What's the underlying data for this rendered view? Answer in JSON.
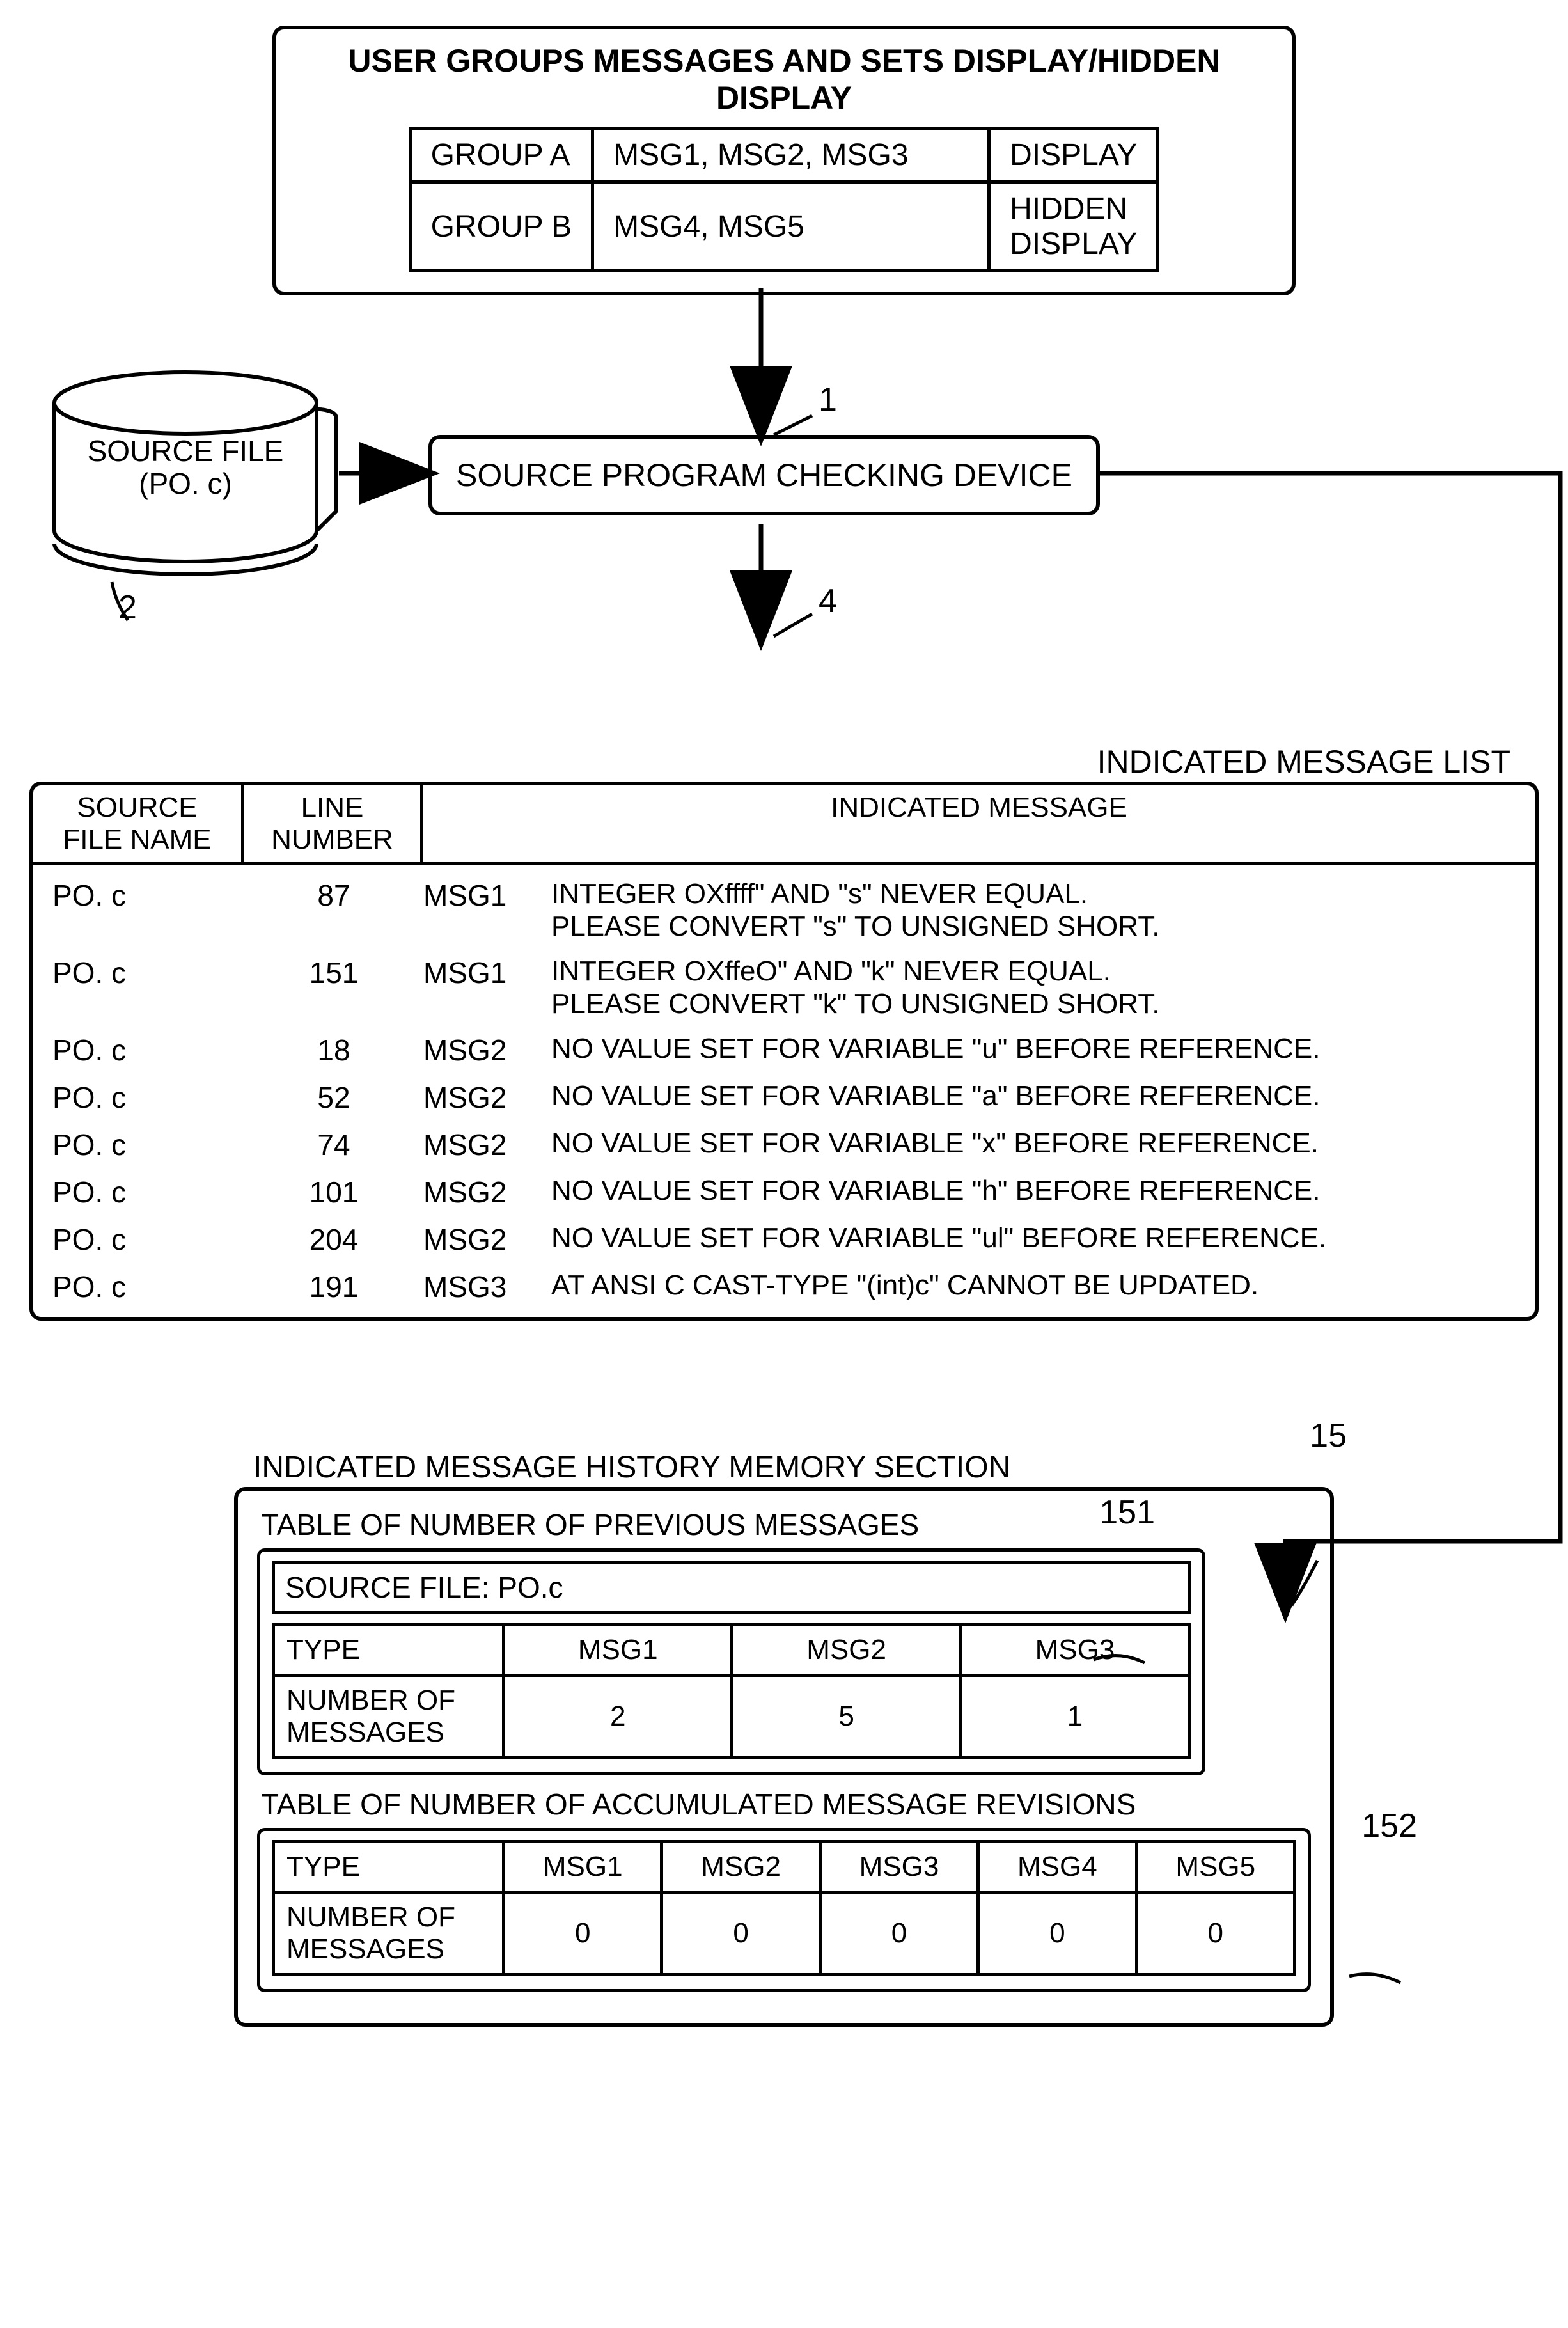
{
  "top": {
    "title": "USER GROUPS MESSAGES AND SETS DISPLAY/HIDDEN DISPLAY",
    "rows": [
      {
        "group": "GROUP A",
        "msgs": "MSG1, MSG2, MSG3",
        "mode": "DISPLAY"
      },
      {
        "group": "GROUP B",
        "msgs": "MSG4, MSG5",
        "mode": "HIDDEN\nDISPLAY"
      }
    ]
  },
  "source_file": {
    "line1": "SOURCE FILE",
    "line2": "(PO. c)"
  },
  "device": {
    "label": "SOURCE PROGRAM CHECKING DEVICE"
  },
  "refs": {
    "r1": "1",
    "r2": "2",
    "r4": "4",
    "r15": "15",
    "r151": "151",
    "r152": "152"
  },
  "msg_list": {
    "label": "INDICATED MESSAGE LIST",
    "headers": {
      "h1": "SOURCE\nFILE NAME",
      "h2": "LINE\nNUMBER",
      "h3": "INDICATED MESSAGE"
    },
    "rows": [
      {
        "file": "PO. c",
        "line": "87",
        "code": "MSG1",
        "text": "INTEGER OXffff\" AND \"s\" NEVER EQUAL.\nPLEASE CONVERT \"s\" TO UNSIGNED SHORT."
      },
      {
        "file": "PO. c",
        "line": "151",
        "code": "MSG1",
        "text": "INTEGER OXffeO\" AND \"k\" NEVER EQUAL.\nPLEASE CONVERT \"k\" TO UNSIGNED SHORT."
      },
      {
        "file": "PO. c",
        "line": "18",
        "code": "MSG2",
        "text": "NO VALUE SET FOR VARIABLE \"u\" BEFORE REFERENCE."
      },
      {
        "file": "PO. c",
        "line": "52",
        "code": "MSG2",
        "text": "NO VALUE SET FOR VARIABLE \"a\" BEFORE REFERENCE."
      },
      {
        "file": "PO. c",
        "line": "74",
        "code": "MSG2",
        "text": "NO VALUE SET FOR VARIABLE \"x\" BEFORE REFERENCE."
      },
      {
        "file": "PO. c",
        "line": "101",
        "code": "MSG2",
        "text": "NO VALUE SET FOR VARIABLE \"h\" BEFORE REFERENCE."
      },
      {
        "file": "PO. c",
        "line": "204",
        "code": "MSG2",
        "text": "NO VALUE SET FOR VARIABLE \"ul\" BEFORE REFERENCE."
      },
      {
        "file": "PO. c",
        "line": "191",
        "code": "MSG3",
        "text": "AT ANSI C CAST-TYPE \"(int)c\" CANNOT BE UPDATED."
      }
    ]
  },
  "history": {
    "label": "INDICATED MESSAGE HISTORY MEMORY SECTION",
    "prev": {
      "title": "TABLE OF NUMBER OF PREVIOUS MESSAGES",
      "source_file": "SOURCE FILE: PO.c",
      "type_label": "TYPE",
      "num_label": "NUMBER OF\nMESSAGES",
      "cols": [
        "MSG1",
        "MSG2",
        "MSG3"
      ],
      "vals": [
        "2",
        "5",
        "1"
      ]
    },
    "acc": {
      "title": "TABLE OF NUMBER OF ACCUMULATED MESSAGE REVISIONS",
      "type_label": "TYPE",
      "num_label": "NUMBER OF\nMESSAGES",
      "cols": [
        "MSG1",
        "MSG2",
        "MSG3",
        "MSG4",
        "MSG5"
      ],
      "vals": [
        "0",
        "0",
        "0",
        "0",
        "0"
      ]
    }
  },
  "style": {
    "stroke": "#000000",
    "stroke_width": 6,
    "font_family": "Arial, Helvetica, sans-serif",
    "bg": "#ffffff"
  }
}
